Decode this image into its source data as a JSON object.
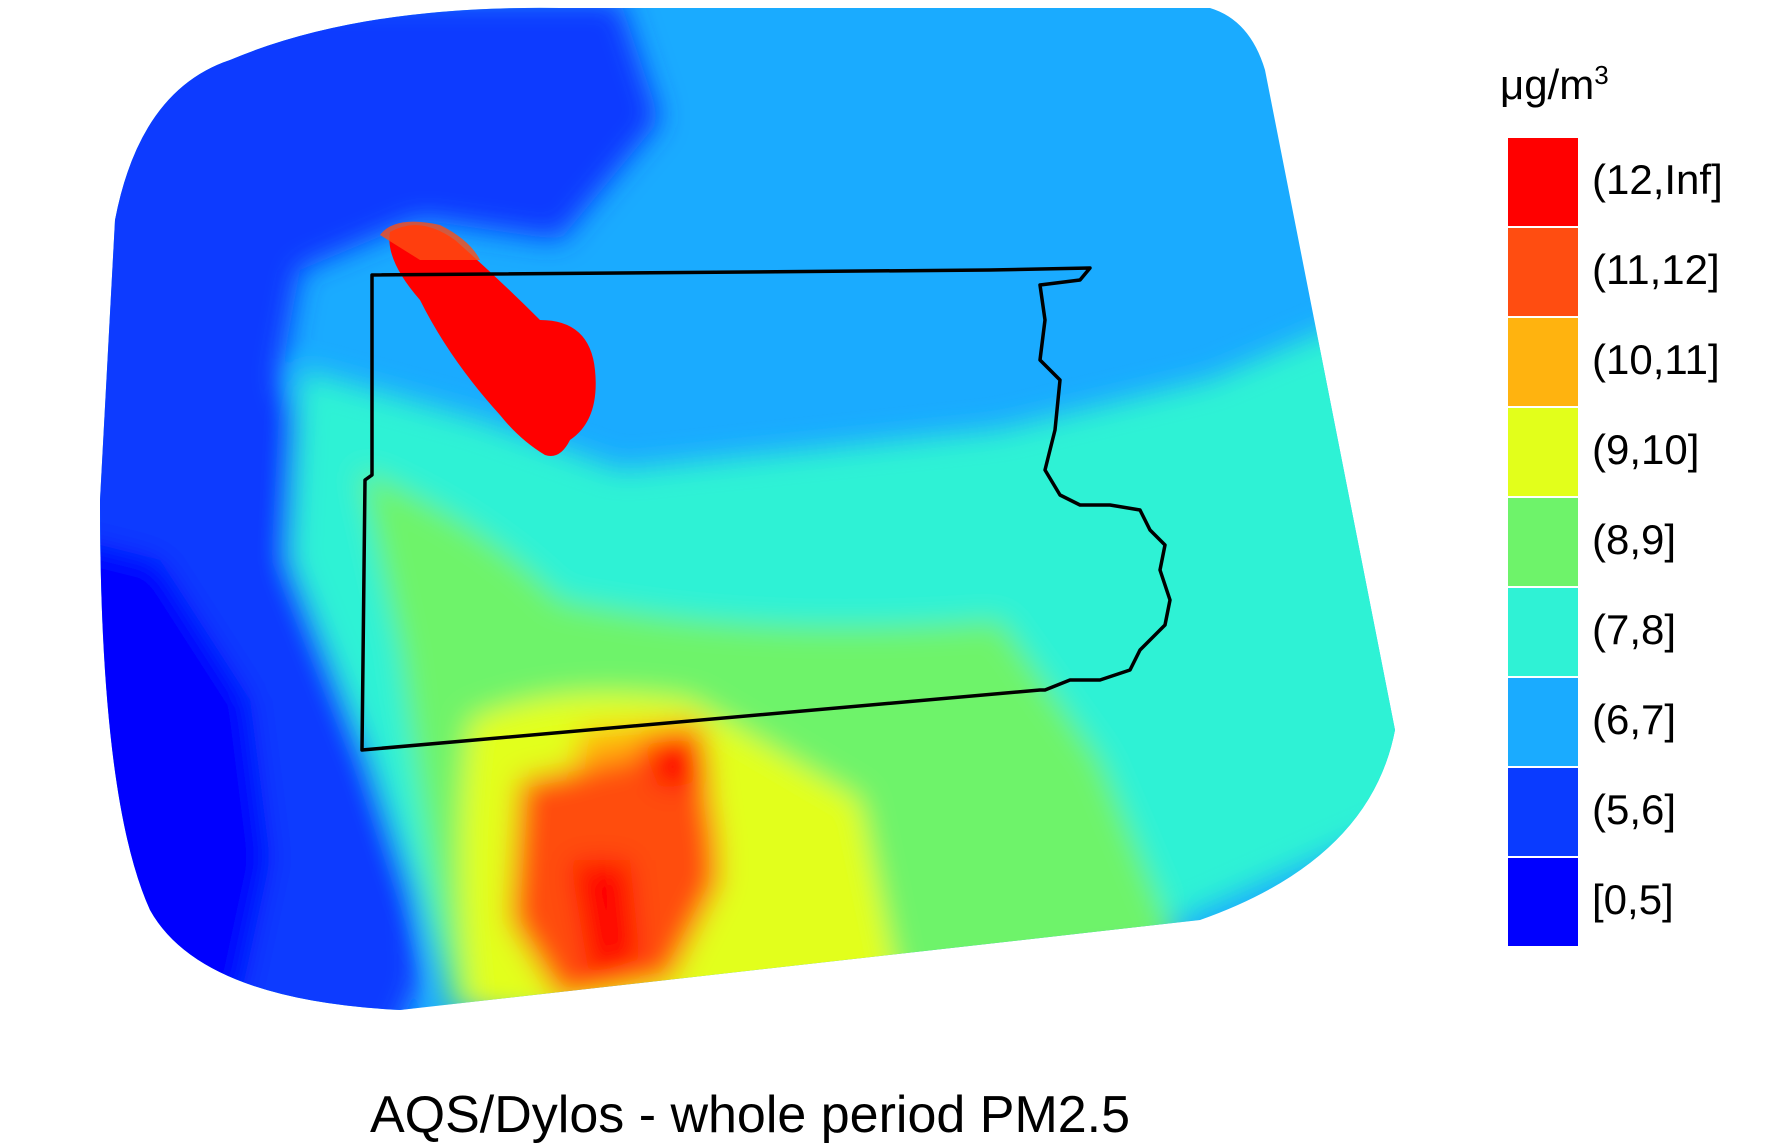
{
  "caption": "AQS/Dylos - whole period PM2.5",
  "legend": {
    "unit_base": "μg/m",
    "unit_exp": "3",
    "bins": [
      {
        "label": "(12,Inf]",
        "color": "#ff0000"
      },
      {
        "label": "(11,12]",
        "color": "#ff4d11"
      },
      {
        "label": "(10,11]",
        "color": "#ffb30f"
      },
      {
        "label": "(9,10]",
        "color": "#e2ff1b"
      },
      {
        "label": "(8,9]",
        "color": "#6ef36a"
      },
      {
        "label": "(7,8]",
        "color": "#2ff2d5"
      },
      {
        "label": "(6,7]",
        "color": "#1aabff"
      },
      {
        "label": "[0,5]",
        "color": "#0000ff"
      }
    ],
    "extra_bin": {
      "label": "(5,6]",
      "color": "#0a3bff"
    }
  },
  "map": {
    "boundary": "state-outline",
    "color_scale": [
      "#0000ff",
      "#0a3bff",
      "#1aabff",
      "#2ff2d5",
      "#6ef36a",
      "#e2ff1b",
      "#ffb30f",
      "#ff4d11",
      "#ff0000"
    ]
  }
}
